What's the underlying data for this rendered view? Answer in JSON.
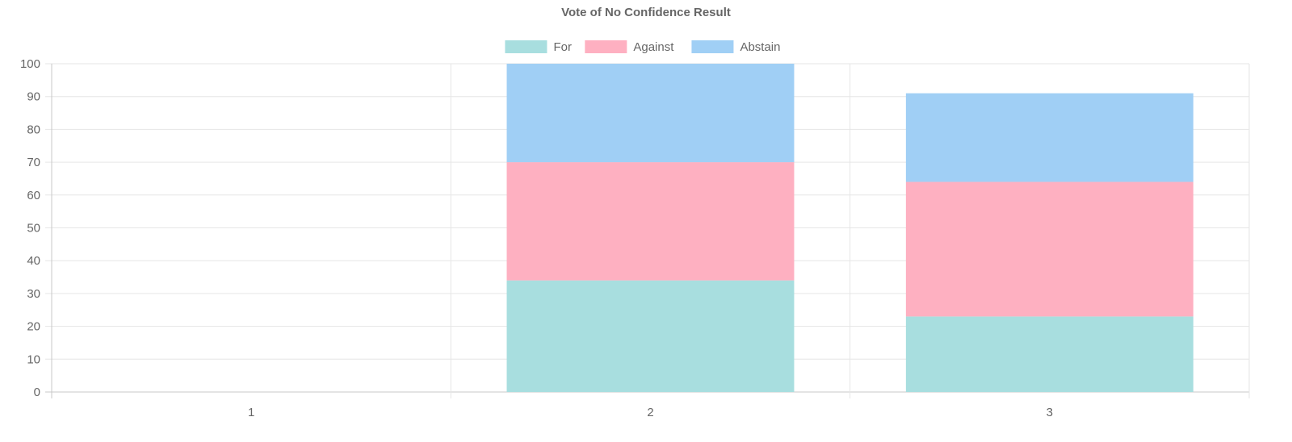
{
  "chart_data": {
    "type": "bar",
    "stacked": true,
    "title": "Vote of No Confidence Result",
    "categories": [
      "1",
      "2",
      "3"
    ],
    "series": [
      {
        "name": "For",
        "values": [
          0,
          34,
          23
        ],
        "color": "#a8dedf"
      },
      {
        "name": "Against",
        "values": [
          0,
          36,
          41
        ],
        "color": "#feb0c1"
      },
      {
        "name": "Abstain",
        "values": [
          0,
          30,
          27
        ],
        "color": "#a0cff5"
      }
    ],
    "ylim": [
      0,
      100
    ],
    "yticks": [
      "0",
      "10",
      "20",
      "30",
      "40",
      "50",
      "60",
      "70",
      "80",
      "90",
      "100"
    ],
    "xlabel": "",
    "ylabel": "",
    "grid": true,
    "legend_position": "top"
  }
}
